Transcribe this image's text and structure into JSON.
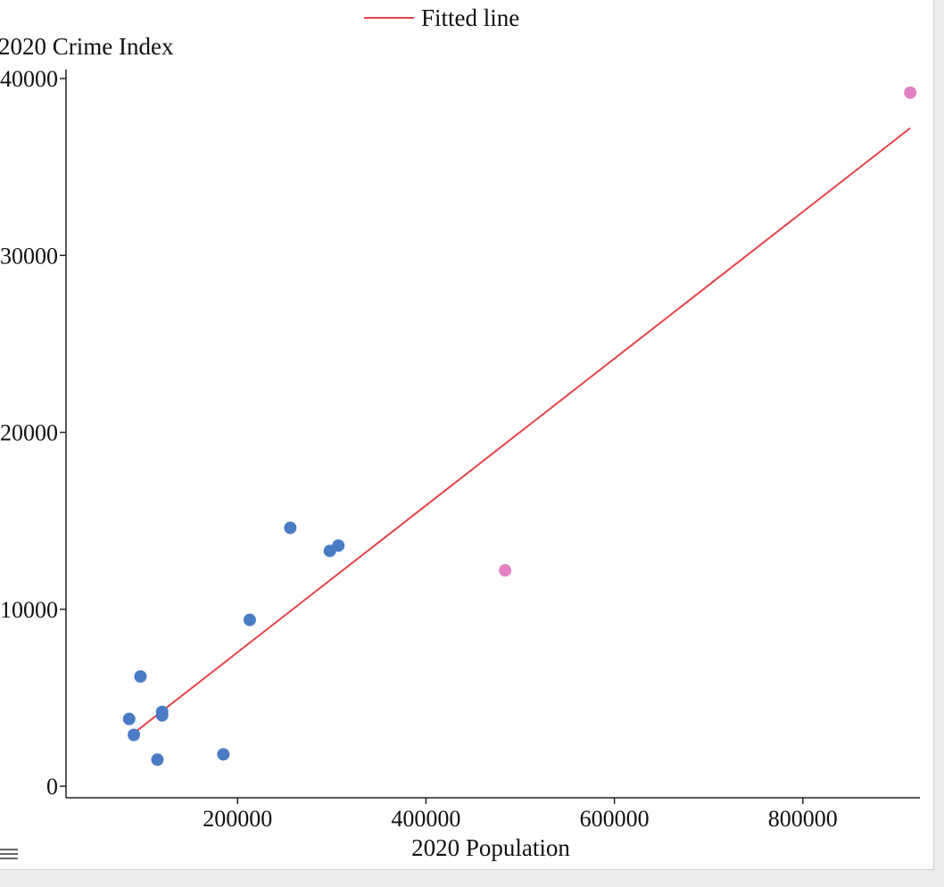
{
  "chart_data": {
    "type": "scatter",
    "title": "",
    "xlabel": "2020 Population",
    "ylabel": "2020 Crime Index",
    "xlim": [
      0,
      1000000
    ],
    "ylim": [
      0,
      40000
    ],
    "xticks": [
      200000,
      400000,
      600000,
      800000
    ],
    "yticks": [
      0,
      10000,
      20000,
      30000,
      40000
    ],
    "xtick_labels": [
      "200000",
      "400000",
      "600000",
      "800000"
    ],
    "ytick_labels": [
      "0",
      "10000",
      "20000",
      "30000",
      "40000"
    ],
    "grid": false,
    "legend": {
      "position": "top-center",
      "entries": [
        "Fitted line"
      ]
    },
    "series": [
      {
        "name": "",
        "color": "#4a7cc6",
        "points": [
          {
            "x": 85000,
            "y": 3800
          },
          {
            "x": 90000,
            "y": 2900
          },
          {
            "x": 97000,
            "y": 6200
          },
          {
            "x": 115000,
            "y": 1500
          },
          {
            "x": 120000,
            "y": 4200
          },
          {
            "x": 120000,
            "y": 4000
          },
          {
            "x": 185000,
            "y": 1800
          },
          {
            "x": 213000,
            "y": 9400
          },
          {
            "x": 256000,
            "y": 14600
          },
          {
            "x": 298000,
            "y": 13300
          },
          {
            "x": 307000,
            "y": 13600
          }
        ]
      },
      {
        "name": "",
        "color": "#e380c1",
        "points": [
          {
            "x": 484000,
            "y": 12200
          },
          {
            "x": 914000,
            "y": 39200
          }
        ]
      }
    ],
    "fitted_line": {
      "name": "Fitted line",
      "color": "#e8424a",
      "x": [
        90000,
        914000
      ],
      "y": [
        3000,
        37200
      ]
    }
  }
}
